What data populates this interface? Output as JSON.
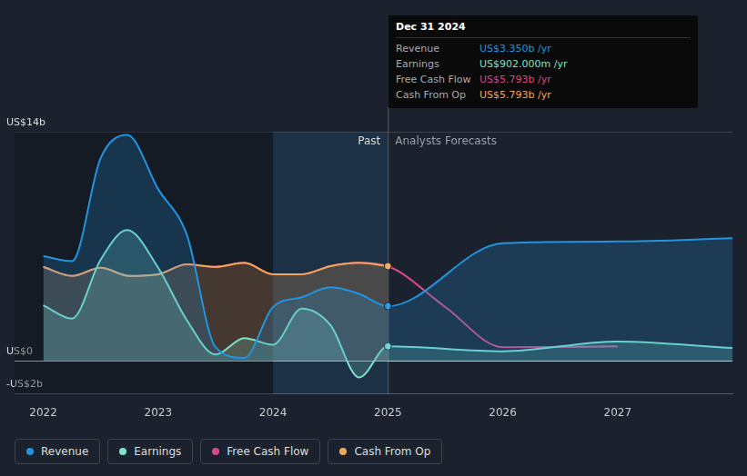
{
  "chart_data": {
    "type": "line",
    "xlim": [
      2021.75,
      2028
    ],
    "xticks": [
      2022,
      2023,
      2024,
      2025,
      2026,
      2027
    ],
    "ylim": [
      -2,
      14
    ],
    "yticks": [
      {
        "value": -2,
        "label": "-US$2b"
      },
      {
        "value": 0,
        "label": "US$0"
      },
      {
        "value": 14,
        "label": "US$14b"
      }
    ],
    "grid": true,
    "legend": "bottom",
    "series": [
      {
        "name": "Revenue",
        "color": "#2394df",
        "type": "area",
        "x": [
          2022,
          2022.25,
          2022.5,
          2022.73,
          2023,
          2023.25,
          2023.5,
          2023.75,
          2024,
          2024.25,
          2024.5,
          2024.75,
          2025,
          2026,
          2027,
          2028
        ],
        "values": [
          6.4,
          6.1,
          12.4,
          13.8,
          10.5,
          7.7,
          0.85,
          0.2,
          3.3,
          3.9,
          4.5,
          4.1,
          3.35,
          7.2,
          7.3,
          7.5
        ]
      },
      {
        "name": "Earnings",
        "color": "#7ee0c8",
        "type": "area",
        "x": [
          2022,
          2022.25,
          2022.5,
          2022.73,
          2023,
          2023.25,
          2023.5,
          2023.75,
          2024,
          2024.25,
          2024.5,
          2024.75,
          2025,
          2026,
          2027,
          2028
        ],
        "values": [
          3.4,
          2.6,
          6.2,
          8.0,
          5.7,
          2.5,
          0.4,
          1.4,
          1.0,
          3.2,
          2.2,
          -1.0,
          0.902,
          0.6,
          1.2,
          0.8
        ]
      },
      {
        "name": "Free Cash Flow",
        "color": "#d6498c",
        "type": "line",
        "x": [
          2022,
          2022.25,
          2022.5,
          2022.75,
          2023,
          2023.25,
          2023.5,
          2023.75,
          2024,
          2024.25,
          2024.5,
          2024.75,
          2025,
          2025.5,
          2026,
          2027
        ],
        "values": [
          5.75,
          5.2,
          5.7,
          5.2,
          5.3,
          5.9,
          5.75,
          6.0,
          5.3,
          5.3,
          5.8,
          6.0,
          5.793,
          3.3,
          0.85,
          0.9
        ]
      },
      {
        "name": "Cash From Op",
        "color": "#f2a65a",
        "type": "area",
        "x": [
          2022,
          2022.25,
          2022.5,
          2022.75,
          2023,
          2023.25,
          2023.5,
          2023.75,
          2024,
          2024.25,
          2024.5,
          2024.75,
          2025
        ],
        "values": [
          5.75,
          5.2,
          5.7,
          5.2,
          5.3,
          5.9,
          5.75,
          6.0,
          5.3,
          5.3,
          5.8,
          6.0,
          5.793
        ]
      }
    ],
    "annotations": {
      "past_label": "Past",
      "forecast_label": "Analysts Forecasts",
      "highlight": [
        2024,
        2025
      ]
    },
    "tooltip": {
      "title": "Dec 31 2024",
      "rows": [
        {
          "label": "Revenue",
          "value": "US$3.350b /yr"
        },
        {
          "label": "Earnings",
          "value": "US$902.000m /yr"
        },
        {
          "label": "Free Cash Flow",
          "value": "US$5.793b /yr"
        },
        {
          "label": "Cash From Op",
          "value": "US$5.793b /yr"
        }
      ]
    }
  }
}
